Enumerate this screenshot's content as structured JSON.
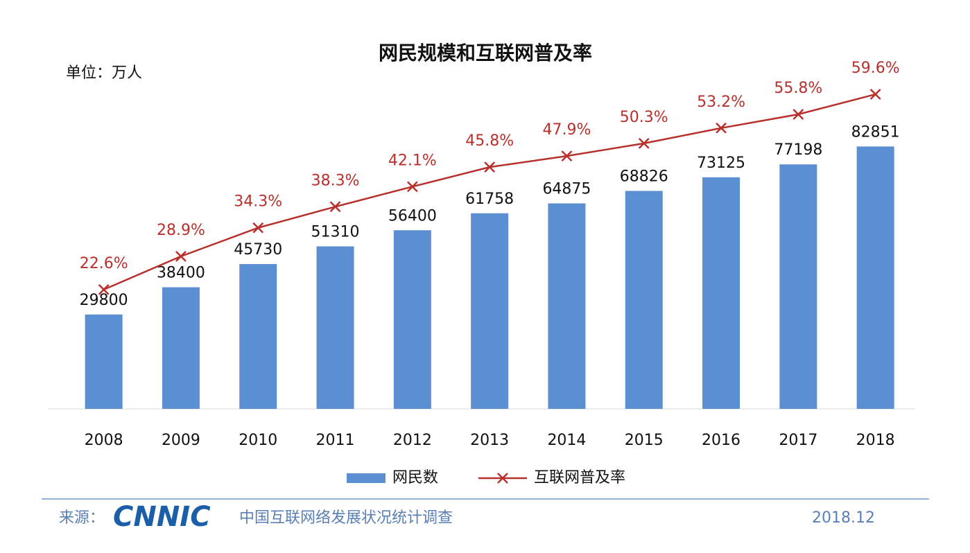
{
  "chart_data": {
    "type": "bar_line",
    "title": "网民规模和互联网普及率",
    "unit_note": "单位：万人",
    "categories": [
      "2008",
      "2009",
      "2010",
      "2011",
      "2012",
      "2013",
      "2014",
      "2015",
      "2016",
      "2017",
      "2018"
    ],
    "series": [
      {
        "name": "网民数",
        "type": "bar",
        "color": "#5b8fd2",
        "values": [
          29800,
          38400,
          45730,
          51310,
          56400,
          61758,
          64875,
          68826,
          73125,
          77198,
          82851
        ]
      },
      {
        "name": "互联网普及率",
        "type": "line",
        "axis": "y2",
        "color": "#b8302c",
        "values": [
          22.6,
          28.9,
          34.3,
          38.3,
          42.1,
          45.8,
          47.9,
          50.3,
          53.2,
          55.8,
          59.6
        ],
        "value_labels": [
          "22.6%",
          "28.9%",
          "34.3%",
          "38.3%",
          "42.1%",
          "45.8%",
          "47.9%",
          "50.3%",
          "53.2%",
          "55.8%",
          "59.6%"
        ]
      }
    ],
    "ylim": [
      0,
      100000
    ],
    "y2lim": [
      0,
      60
    ],
    "legend": "bottom",
    "source": {
      "prefix": "来源：",
      "logo": "CNNIC",
      "text": "中国互联网络发展状况统计调查",
      "date": "2018.12"
    }
  }
}
